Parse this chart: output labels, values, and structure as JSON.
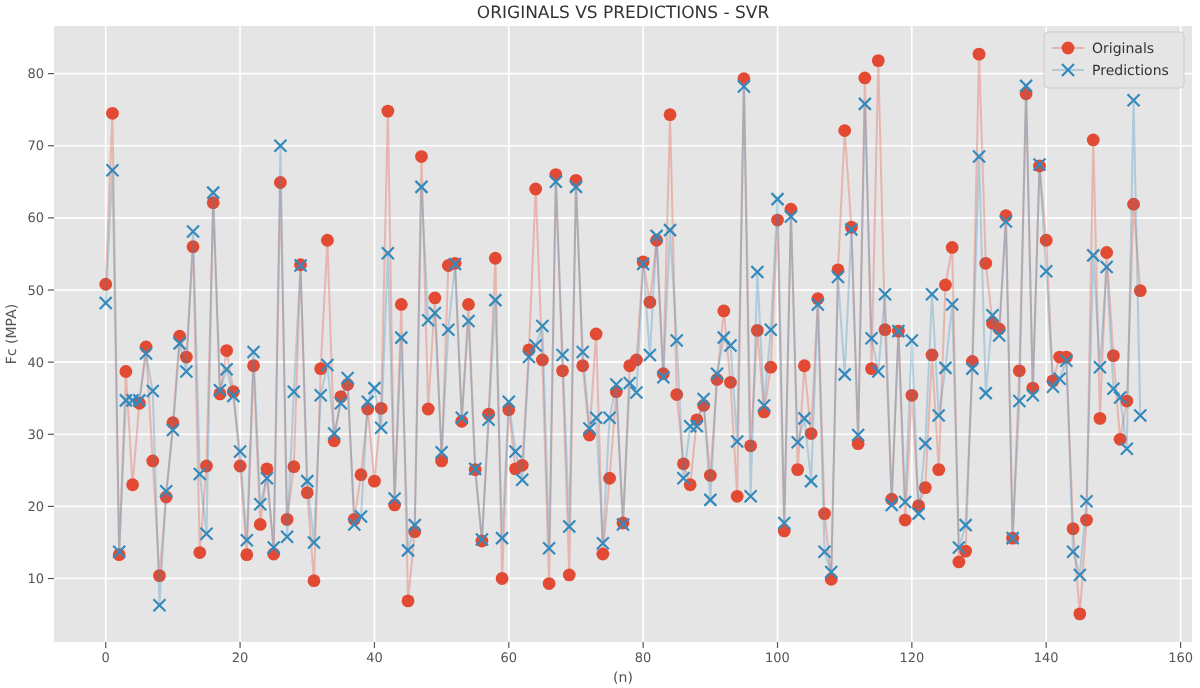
{
  "chart_data": {
    "type": "line",
    "title": "ORIGINALS VS PREDICTIONS - SVR",
    "xlabel": "(n)",
    "ylabel": "Fc (MPA)",
    "x": [
      0,
      1,
      2,
      3,
      4,
      5,
      6,
      7,
      8,
      9,
      10,
      11,
      12,
      13,
      14,
      15,
      16,
      17,
      18,
      19,
      20,
      21,
      22,
      23,
      24,
      25,
      26,
      27,
      28,
      29,
      30,
      31,
      32,
      33,
      34,
      35,
      36,
      37,
      38,
      39,
      40,
      41,
      42,
      43,
      44,
      45,
      46,
      47,
      48,
      49,
      50,
      51,
      52,
      53,
      54,
      55,
      56,
      57,
      58,
      59,
      60,
      61,
      62,
      63,
      64,
      65,
      66,
      67,
      68,
      69,
      70,
      71,
      72,
      73,
      74,
      75,
      76,
      77,
      78,
      79,
      80,
      81,
      82,
      83,
      84,
      85,
      86,
      87,
      88,
      89,
      90,
      91,
      92,
      93,
      94,
      95,
      96,
      97,
      98,
      99,
      100,
      101,
      102,
      103,
      104,
      105,
      106,
      107,
      108,
      109,
      110,
      111,
      112,
      113,
      114,
      115,
      116,
      117,
      118,
      119,
      120,
      121,
      122,
      123,
      124,
      125,
      126,
      127,
      128,
      129,
      130,
      131,
      132,
      133,
      134,
      135,
      136,
      137,
      138,
      139,
      140,
      141,
      142,
      143,
      144,
      145,
      146,
      147,
      148,
      149,
      150,
      151,
      152,
      153,
      154
    ],
    "series": [
      {
        "name": "Originals",
        "color": "#e24a33",
        "marker": "circle",
        "values": [
          50.8,
          74.5,
          13.3,
          38.7,
          23.0,
          34.3,
          42.1,
          26.3,
          10.4,
          21.3,
          31.6,
          43.6,
          40.7,
          56.0,
          13.6,
          25.6,
          62.1,
          35.6,
          41.6,
          35.9,
          25.6,
          13.3,
          39.5,
          17.5,
          25.2,
          13.4,
          64.9,
          18.2,
          25.5,
          53.5,
          21.9,
          9.7,
          39.1,
          56.9,
          29.1,
          35.2,
          36.9,
          18.2,
          24.4,
          33.5,
          23.5,
          33.6,
          74.8,
          20.2,
          48.0,
          6.9,
          16.5,
          68.5,
          33.5,
          48.9,
          26.3,
          53.4,
          53.7,
          31.8,
          48.0,
          25.1,
          15.2,
          32.8,
          54.4,
          10.0,
          33.4,
          25.2,
          25.7,
          41.7,
          64.0,
          40.3,
          9.3,
          66.0,
          38.8,
          10.5,
          65.2,
          39.5,
          29.9,
          43.9,
          13.4,
          23.9,
          35.9,
          17.7,
          39.5,
          40.3,
          53.9,
          48.3,
          56.9,
          38.4,
          74.3,
          35.5,
          25.9,
          23.0,
          32.0,
          34.0,
          24.3,
          37.6,
          47.1,
          37.2,
          21.4,
          79.3,
          28.4,
          44.4,
          33.1,
          39.3,
          59.7,
          16.6,
          61.2,
          25.1,
          39.5,
          30.1,
          48.8,
          19.0,
          9.9,
          52.8,
          72.1,
          58.7,
          28.7,
          79.4,
          39.1,
          81.8,
          44.5,
          21.0,
          44.3,
          18.1,
          35.4,
          20.1,
          22.6,
          41.0,
          25.1,
          50.7,
          55.9,
          12.3,
          13.8,
          40.1,
          82.7,
          53.7,
          45.4,
          44.6,
          60.3,
          15.6,
          38.8,
          77.2,
          36.4,
          67.2,
          56.9,
          37.4,
          40.7,
          40.7,
          16.9,
          5.1,
          18.1,
          70.8,
          32.2,
          55.2,
          40.9,
          29.3,
          34.6,
          61.9,
          49.9
        ]
      },
      {
        "name": "Predictions",
        "color": "#348abd",
        "marker": "cross",
        "values": [
          48.2,
          66.6,
          13.7,
          34.7,
          34.7,
          34.7,
          41.2,
          36.0,
          6.3,
          22.1,
          30.6,
          42.6,
          38.7,
          58.1,
          24.5,
          16.2,
          63.5,
          36.1,
          39.0,
          35.3,
          27.6,
          15.3,
          41.4,
          20.3,
          23.9,
          14.3,
          70.0,
          15.8,
          35.9,
          53.4,
          23.5,
          15.0,
          35.4,
          39.6,
          30.1,
          34.3,
          37.8,
          17.5,
          18.6,
          34.5,
          36.4,
          30.9,
          55.1,
          21.1,
          43.4,
          13.9,
          17.4,
          64.3,
          45.8,
          46.8,
          27.5,
          44.5,
          53.6,
          32.3,
          45.7,
          25.2,
          15.4,
          32.0,
          48.6,
          15.6,
          34.5,
          27.6,
          23.7,
          40.7,
          42.3,
          45.0,
          14.2,
          65.0,
          41.0,
          17.2,
          64.3,
          41.4,
          30.8,
          32.3,
          14.9,
          32.3,
          36.9,
          17.5,
          37.1,
          35.8,
          53.6,
          41.0,
          57.5,
          37.9,
          58.3,
          43.0,
          23.9,
          31.1,
          31.1,
          34.9,
          20.9,
          38.4,
          43.4,
          42.3,
          29.0,
          78.2,
          21.4,
          52.5,
          34.0,
          44.5,
          62.6,
          17.7,
          60.2,
          28.9,
          32.2,
          23.5,
          48.0,
          13.7,
          10.9,
          51.8,
          38.3,
          58.4,
          29.9,
          75.8,
          43.3,
          38.7,
          49.4,
          20.2,
          44.3,
          20.6,
          43.0,
          19.0,
          28.7,
          49.4,
          32.6,
          39.2,
          48.0,
          14.3,
          17.4,
          39.1,
          68.5,
          35.7,
          46.5,
          43.7,
          59.5,
          15.6,
          34.6,
          78.3,
          35.4,
          67.4,
          52.6,
          36.6,
          37.7,
          40.2,
          13.7,
          10.5,
          20.7,
          54.8,
          39.3,
          53.2,
          36.3,
          35.1,
          28.0,
          76.3,
          32.6
        ]
      }
    ],
    "xlim": [
      -7.7,
      161.7
    ],
    "ylim": [
      1.2,
      86.6
    ],
    "xticks": [
      0,
      20,
      40,
      60,
      80,
      100,
      120,
      140,
      160
    ],
    "yticks": [
      10,
      20,
      30,
      40,
      50,
      60,
      70,
      80
    ],
    "grid": true,
    "legend": "top right"
  }
}
